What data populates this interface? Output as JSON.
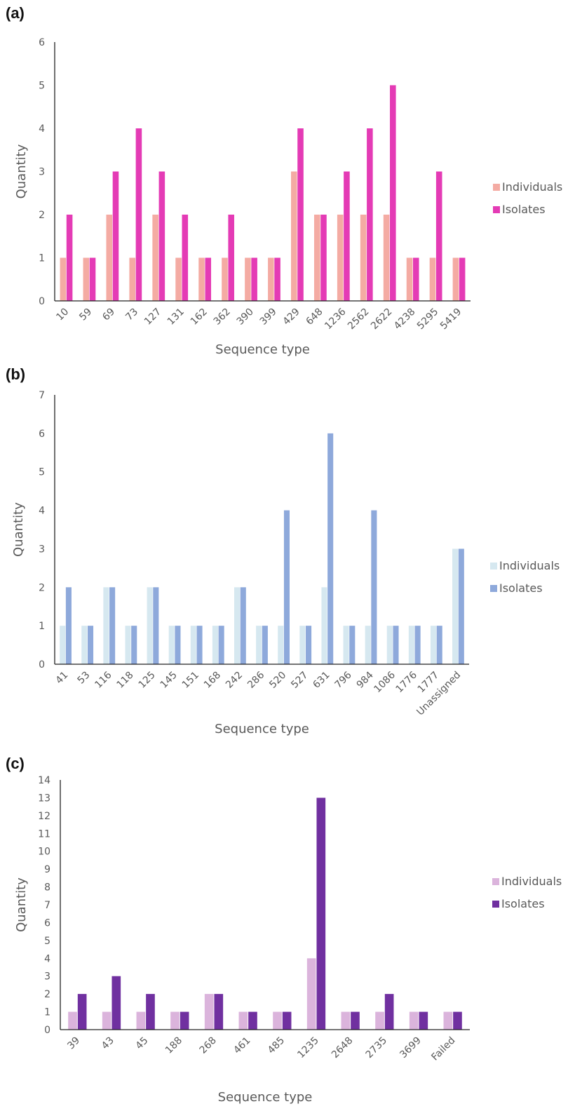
{
  "chart_data": [
    {
      "panel_label": "(a)",
      "type": "bar",
      "xlabel": "Sequence type",
      "ylabel": "Quantity",
      "ylim": [
        0,
        6
      ],
      "yticks": [
        "0",
        "1",
        "2",
        "3",
        "4",
        "5",
        "6"
      ],
      "legend_position": "right",
      "categories": [
        "10",
        "59",
        "69",
        "73",
        "127",
        "131",
        "162",
        "362",
        "390",
        "399",
        "429",
        "648",
        "1236",
        "2562",
        "2622",
        "4238",
        "5295",
        "5419"
      ],
      "series": [
        {
          "name": "Individuals",
          "color": "#f4aba3",
          "values": [
            1,
            1,
            2,
            1,
            2,
            1,
            1,
            1,
            1,
            1,
            3,
            2,
            2,
            2,
            2,
            1,
            1,
            1
          ]
        },
        {
          "name": "Isolates",
          "color": "#e43bb5",
          "values": [
            2,
            1,
            3,
            4,
            3,
            2,
            1,
            2,
            1,
            1,
            4,
            2,
            3,
            4,
            5,
            1,
            3,
            1
          ]
        }
      ]
    },
    {
      "panel_label": "(b)",
      "type": "bar",
      "xlabel": "Sequence type",
      "ylabel": "Quantity",
      "ylim": [
        0,
        7
      ],
      "yticks": [
        "0",
        "1",
        "2",
        "3",
        "4",
        "5",
        "6",
        "7"
      ],
      "legend_position": "right",
      "categories": [
        "41",
        "53",
        "116",
        "118",
        "125",
        "145",
        "151",
        "168",
        "242",
        "286",
        "520",
        "527",
        "631",
        "796",
        "984",
        "1086",
        "1776",
        "1777",
        "Unassigned"
      ],
      "series": [
        {
          "name": "Individuals",
          "color": "#d6e8f0",
          "values": [
            1,
            1,
            2,
            1,
            2,
            1,
            1,
            1,
            2,
            1,
            1,
            1,
            2,
            1,
            1,
            1,
            1,
            1,
            3
          ]
        },
        {
          "name": "Isolates",
          "color": "#8ea9db",
          "values": [
            2,
            1,
            2,
            1,
            2,
            1,
            1,
            1,
            2,
            1,
            4,
            1,
            6,
            1,
            4,
            1,
            1,
            1,
            3
          ]
        }
      ]
    },
    {
      "panel_label": "(c)",
      "type": "bar",
      "xlabel": "Sequence type",
      "ylabel": "Quantity",
      "ylim": [
        0,
        14
      ],
      "yticks": [
        "0",
        "1",
        "2",
        "3",
        "4",
        "5",
        "6",
        "7",
        "8",
        "9",
        "10",
        "11",
        "12",
        "13",
        "14"
      ],
      "legend_position": "right",
      "categories": [
        "39",
        "43",
        "45",
        "188",
        "268",
        "461",
        "485",
        "1235",
        "2648",
        "2735",
        "3699",
        "Failed"
      ],
      "series": [
        {
          "name": "Individuals",
          "color": "#dbb4dc",
          "values": [
            1,
            1,
            1,
            1,
            2,
            1,
            1,
            4,
            1,
            1,
            1,
            1
          ]
        },
        {
          "name": "Isolates",
          "color": "#7030a0",
          "values": [
            2,
            3,
            2,
            1,
            2,
            1,
            1,
            13,
            1,
            2,
            1,
            1
          ]
        }
      ]
    }
  ]
}
